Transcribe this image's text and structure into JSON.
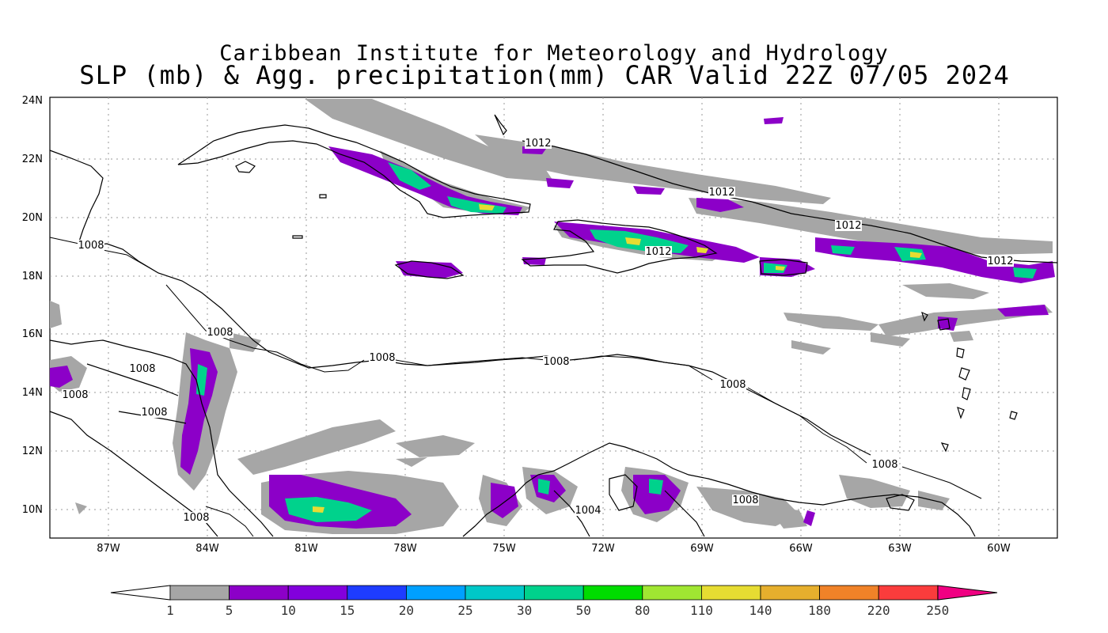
{
  "header": {
    "title_line1": "Caribbean Institute for Meteorology and Hydrology",
    "title_line2": "SLP (mb) & Agg. precipitation(mm) CAR Valid 22Z 07/05 2024"
  },
  "map": {
    "lat_labels": [
      "24N",
      "22N",
      "20N",
      "18N",
      "16N",
      "14N",
      "12N",
      "10N"
    ],
    "lon_labels": [
      "87W",
      "84W",
      "81W",
      "78W",
      "75W",
      "72W",
      "69W",
      "66W",
      "63W",
      "60W"
    ],
    "isobar_labels": [
      {
        "text": "1012",
        "id": "isobar-1012-north"
      },
      {
        "text": "1012",
        "id": "isobar-1012-bahamas"
      },
      {
        "text": "1012",
        "id": "isobar-1012-hispaniola"
      },
      {
        "text": "1012",
        "id": "isobar-1012-puerto-rico"
      },
      {
        "text": "1012",
        "id": "isobar-1012-east"
      },
      {
        "text": "1008",
        "id": "isobar-1008-yucatan"
      },
      {
        "text": "1008",
        "id": "isobar-1008-honduras"
      },
      {
        "text": "1008",
        "id": "isobar-1008-mid-1"
      },
      {
        "text": "1008",
        "id": "isobar-1008-mid-2"
      },
      {
        "text": "1008",
        "id": "isobar-1008-mid-3"
      },
      {
        "text": "1008",
        "id": "isobar-1008-central-am-1"
      },
      {
        "text": "1008",
        "id": "isobar-1008-central-am-2"
      },
      {
        "text": "1008",
        "id": "isobar-1008-central-am-3"
      },
      {
        "text": "1008",
        "id": "isobar-1008-venezuela-east"
      },
      {
        "text": "1008",
        "id": "isobar-1008-venezuela"
      },
      {
        "text": "1008",
        "id": "isobar-1008-panama"
      },
      {
        "text": "1004",
        "id": "isobar-1004-colombia"
      }
    ]
  },
  "colorbar": {
    "labels": [
      "1",
      "5",
      "10",
      "15",
      "20",
      "25",
      "30",
      "50",
      "80",
      "110",
      "140",
      "180",
      "220",
      "250"
    ],
    "colors": [
      "#a6a6a6",
      "#8c00c8",
      "#8200dc",
      "#1e3cff",
      "#00a0ff",
      "#00c8c8",
      "#00d28c",
      "#00dc00",
      "#a0e632",
      "#e6dc32",
      "#e6af2d",
      "#f08228",
      "#fa3c3c",
      "#f00082"
    ]
  }
}
